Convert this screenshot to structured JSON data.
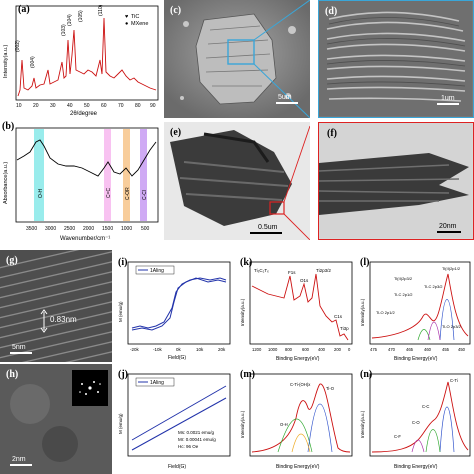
{
  "panels": {
    "a": {
      "label": "(a)",
      "xlabel": "2θ/degree",
      "ylabel": "Intensity(a.u.)",
      "legend": [
        "TiC",
        "MXene"
      ],
      "peaks": [
        "(002)",
        "(004)",
        "(103)",
        "(104)",
        "(105)",
        "(110)"
      ],
      "xticks": [
        "10",
        "20",
        "30",
        "40",
        "50",
        "60",
        "70",
        "80",
        "90"
      ]
    },
    "b": {
      "label": "(b)",
      "xlabel": "Wavenumber/cm⁻¹",
      "ylabel": "Absorbance(a.u.)",
      "bands": [
        "O-H",
        "C=C",
        "C-OR",
        "C-Cl"
      ],
      "xticks": [
        "3500",
        "3000",
        "2500",
        "2000",
        "1500",
        "1000",
        "500"
      ]
    },
    "c": {
      "label": "(c)",
      "scale": "5um"
    },
    "d": {
      "label": "(d)",
      "scale": "1um"
    },
    "e": {
      "label": "(e)",
      "scale": "0.5um"
    },
    "f": {
      "label": "(f)",
      "scale": "20nm"
    },
    "g": {
      "label": "(g)",
      "scale": "5nm",
      "annotation": "0.83nm"
    },
    "h": {
      "label": "(h)",
      "scale": "2nm"
    },
    "i": {
      "label": "(i)",
      "legend": "1Aling",
      "xlabel": "Field(G)",
      "ylabel": "M (emu/g)",
      "xticks": [
        "-20k",
        "-10k",
        "0k",
        "10k",
        "20k"
      ]
    },
    "j": {
      "label": "(j)",
      "legend": "1Aling",
      "xlabel": "Field(G)",
      "ylabel": "M (emu/g)",
      "notes": [
        "Ms: 0.0021 emu/g",
        "Mr: 0.00041 emu/g",
        "Hc: 96 Oe"
      ]
    },
    "k": {
      "label": "(k)",
      "xlabel": "Binding Energy(eV)",
      "ylabel": "Intensity(a.u.)",
      "peaks": [
        "Ti₃C₂Tₓ",
        "F1s",
        "O1s",
        "Ti2p3/2",
        "C1s",
        "Ti3p"
      ],
      "xticks": [
        "1200",
        "1000",
        "800",
        "600",
        "400",
        "200",
        "0"
      ]
    },
    "l": {
      "label": "(l)",
      "xlabel": "Binding Energy(eV)",
      "ylabel": "Intensity(a.u.)",
      "peaks": [
        "Ti(II)2p1/2",
        "Ti(II)2p3/2",
        "Ti-C 2p1/2",
        "Ti-C 2p3/2",
        "Ti-O 2p1/2",
        "Ti-O 2p3/2"
      ],
      "xticks": [
        "475",
        "470",
        "465",
        "460",
        "455",
        "450"
      ]
    },
    "m": {
      "label": "(m)",
      "xlabel": "Binding Energy(eV)",
      "ylabel": "Intensity(a.u.)",
      "peaks": [
        "C-Ti-(OH)x",
        "Ti-O",
        "O-H"
      ]
    },
    "n": {
      "label": "(n)",
      "xlabel": "Binding Energy(eV)",
      "ylabel": "Intensity(a.u.)",
      "peaks": [
        "C-Ti",
        "C-C",
        "C-O",
        "C-F"
      ]
    }
  },
  "colors": {
    "line_red": "#cc1111",
    "oh": "#7fe7e7",
    "cc": "#f7b7ef",
    "cor": "#f7c48a",
    "ccl": "#c79bf2",
    "zoom": "#3aa6d8",
    "zoom2": "#dd2222",
    "mag": "#2233aa"
  }
}
